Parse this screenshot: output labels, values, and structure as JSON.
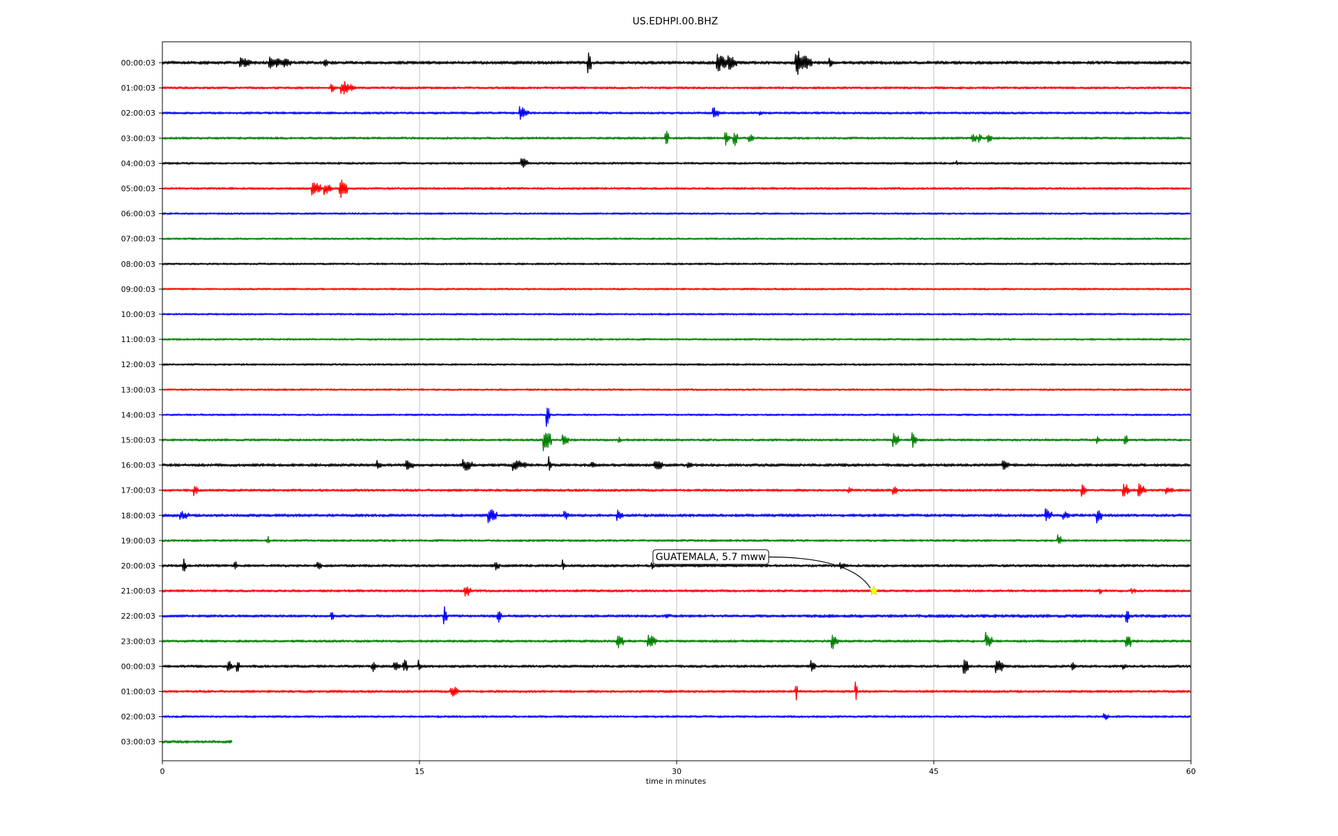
{
  "chart_data": {
    "type": "line",
    "title": "US.EDHPI.00.BHZ",
    "xlabel": "time in minutes",
    "ylabel": "",
    "xlim": [
      0,
      60
    ],
    "x_ticks": [
      "0",
      "15",
      "30",
      "45",
      "60"
    ],
    "grid": "vertical lines at each x tick",
    "trace_colors": [
      "#000000",
      "#ff0000",
      "#0000ff",
      "#008000"
    ],
    "traces": [
      {
        "label": "00:00:03",
        "start": 0,
        "end": 60,
        "noise": 2.2,
        "events": [
          [
            4.5,
            0.7,
            8
          ],
          [
            6.2,
            0.8,
            10
          ],
          [
            7,
            0.6,
            7
          ],
          [
            9.4,
            0.3,
            9
          ],
          [
            24.8,
            0.2,
            22
          ],
          [
            32.3,
            0.7,
            14
          ],
          [
            33,
            0.5,
            12
          ],
          [
            36.9,
            0.6,
            24
          ],
          [
            37.5,
            0.4,
            12
          ],
          [
            38.9,
            0.3,
            8
          ]
        ]
      },
      {
        "label": "01:00:03",
        "start": 0,
        "end": 60,
        "noise": 1.6,
        "events": [
          [
            9.8,
            0.4,
            7
          ],
          [
            10.4,
            0.6,
            12
          ],
          [
            11,
            0.3,
            5
          ]
        ]
      },
      {
        "label": "02:00:03",
        "start": 0,
        "end": 60,
        "noise": 1.6,
        "events": [
          [
            20.8,
            0.6,
            10
          ],
          [
            32.1,
            0.4,
            9
          ],
          [
            34.8,
            0.2,
            4
          ],
          [
            38.1,
            0.2,
            4
          ]
        ]
      },
      {
        "label": "03:00:03",
        "start": 0,
        "end": 60,
        "noise": 1.6,
        "events": [
          [
            29.3,
            0.25,
            14
          ],
          [
            32.8,
            0.3,
            12
          ],
          [
            33.3,
            0.25,
            14
          ],
          [
            34.2,
            0.3,
            7
          ],
          [
            47.2,
            0.3,
            9
          ],
          [
            47.6,
            0.2,
            12
          ],
          [
            48.1,
            0.3,
            8
          ]
        ]
      },
      {
        "label": "04:00:03",
        "start": 0,
        "end": 60,
        "noise": 1.5,
        "events": [
          [
            20.9,
            0.4,
            10
          ],
          [
            46.3,
            0.2,
            4
          ]
        ]
      },
      {
        "label": "05:00:03",
        "start": 0,
        "end": 60,
        "noise": 1.5,
        "events": [
          [
            8.7,
            0.6,
            12
          ],
          [
            9.4,
            0.5,
            10
          ],
          [
            10.3,
            0.5,
            16
          ]
        ]
      },
      {
        "label": "06:00:03",
        "start": 0,
        "end": 60,
        "noise": 1.3,
        "events": []
      },
      {
        "label": "07:00:03",
        "start": 0,
        "end": 60,
        "noise": 1.3,
        "events": []
      },
      {
        "label": "08:00:03",
        "start": 0,
        "end": 60,
        "noise": 1.3,
        "events": []
      },
      {
        "label": "09:00:03",
        "start": 0,
        "end": 60,
        "noise": 1.3,
        "events": []
      },
      {
        "label": "10:00:03",
        "start": 0,
        "end": 60,
        "noise": 1.3,
        "events": []
      },
      {
        "label": "11:00:03",
        "start": 0,
        "end": 60,
        "noise": 1.3,
        "events": []
      },
      {
        "label": "12:00:03",
        "start": 0,
        "end": 60,
        "noise": 1.3,
        "events": []
      },
      {
        "label": "13:00:03",
        "start": 0,
        "end": 60,
        "noise": 1.3,
        "events": []
      },
      {
        "label": "14:00:03",
        "start": 0,
        "end": 60,
        "noise": 1.3,
        "events": [
          [
            22.4,
            0.2,
            20
          ]
        ]
      },
      {
        "label": "15:00:03",
        "start": 0,
        "end": 60,
        "noise": 1.6,
        "events": [
          [
            22.2,
            0.5,
            18
          ],
          [
            23.3,
            0.4,
            9
          ],
          [
            26.6,
            0.2,
            5
          ],
          [
            42.6,
            0.4,
            12
          ],
          [
            43.7,
            0.3,
            14
          ],
          [
            54.5,
            0.2,
            7
          ],
          [
            56.1,
            0.2,
            11
          ]
        ]
      },
      {
        "label": "16:00:03",
        "start": 0,
        "end": 60,
        "noise": 2.0,
        "events": [
          [
            12.5,
            0.3,
            9
          ],
          [
            14.2,
            0.5,
            8
          ],
          [
            17.5,
            0.6,
            10
          ],
          [
            20.4,
            0.8,
            9
          ],
          [
            22.5,
            0.2,
            14
          ],
          [
            25,
            0.3,
            6
          ],
          [
            28.7,
            0.5,
            9
          ],
          [
            30.6,
            0.3,
            6
          ],
          [
            49,
            0.4,
            8
          ]
        ]
      },
      {
        "label": "17:00:03",
        "start": 0,
        "end": 60,
        "noise": 1.7,
        "events": [
          [
            1.8,
            0.3,
            9
          ],
          [
            40,
            0.3,
            5
          ],
          [
            42.6,
            0.3,
            8
          ],
          [
            53.6,
            0.3,
            11
          ],
          [
            56,
            0.4,
            13
          ],
          [
            56.9,
            0.5,
            10
          ],
          [
            58.5,
            0.5,
            6
          ]
        ]
      },
      {
        "label": "18:00:03",
        "start": 0,
        "end": 60,
        "noise": 2.0,
        "events": [
          [
            1,
            0.6,
            7
          ],
          [
            19,
            0.5,
            12
          ],
          [
            23.4,
            0.3,
            8
          ],
          [
            26.5,
            0.4,
            9
          ],
          [
            51.5,
            0.4,
            11
          ],
          [
            52.5,
            0.4,
            8
          ],
          [
            54.5,
            0.3,
            14
          ]
        ]
      },
      {
        "label": "19:00:03",
        "start": 0,
        "end": 60,
        "noise": 1.5,
        "events": [
          [
            6.1,
            0.15,
            8
          ],
          [
            52.2,
            0.3,
            10
          ]
        ]
      },
      {
        "label": "20:00:03",
        "start": 0,
        "end": 60,
        "noise": 1.8,
        "events": [
          [
            1.2,
            0.2,
            12
          ],
          [
            4.2,
            0.2,
            8
          ],
          [
            9,
            0.3,
            7
          ],
          [
            19.4,
            0.3,
            7
          ],
          [
            23.3,
            0.2,
            10
          ],
          [
            28.5,
            0.2,
            6
          ],
          [
            39.5,
            0.3,
            7
          ]
        ]
      },
      {
        "label": "21:00:03",
        "start": 0,
        "end": 60,
        "noise": 1.7,
        "events": [
          [
            17.6,
            0.4,
            12
          ],
          [
            21.2,
            23.8,
            1.5
          ],
          [
            54.6,
            0.2,
            7
          ],
          [
            56.5,
            0.3,
            5
          ]
        ]
      },
      {
        "label": "22:00:03",
        "start": 0,
        "end": 60,
        "noise": 1.8,
        "events": [
          [
            9.8,
            0.2,
            13
          ],
          [
            16.4,
            0.2,
            16
          ],
          [
            19.5,
            0.3,
            12
          ],
          [
            29.3,
            0.5,
            4
          ],
          [
            37.8,
            20.8,
            2.2
          ],
          [
            56.2,
            0.2,
            14
          ]
        ]
      },
      {
        "label": "23:00:03",
        "start": 0,
        "end": 60,
        "noise": 1.7,
        "events": [
          [
            5,
            55,
            1.5
          ],
          [
            26.5,
            0.4,
            14
          ],
          [
            28.3,
            0.5,
            12
          ],
          [
            39,
            0.4,
            14
          ],
          [
            48,
            0.4,
            14
          ],
          [
            56.2,
            0.3,
            18
          ]
        ]
      },
      {
        "label": "00:00:03",
        "start": 0,
        "end": 60,
        "noise": 1.8,
        "events": [
          [
            3.8,
            0.3,
            12
          ],
          [
            4.3,
            0.2,
            12
          ],
          [
            12.2,
            0.3,
            10
          ],
          [
            13.5,
            0.4,
            8
          ],
          [
            14,
            0.3,
            14
          ],
          [
            14.9,
            0.2,
            10
          ],
          [
            37.8,
            0.3,
            12
          ],
          [
            46.7,
            0.3,
            15
          ],
          [
            48.6,
            0.5,
            14
          ],
          [
            53,
            0.3,
            7
          ],
          [
            56,
            0.3,
            5
          ]
        ]
      },
      {
        "label": "01:00:03",
        "start": 0,
        "end": 60,
        "noise": 1.7,
        "events": [
          [
            16.8,
            0.5,
            10
          ],
          [
            36.9,
            0.15,
            22
          ],
          [
            40.4,
            0.15,
            20
          ]
        ]
      },
      {
        "label": "02:00:03",
        "start": 0,
        "end": 60,
        "noise": 1.5,
        "events": [
          [
            54.9,
            0.4,
            6
          ]
        ]
      },
      {
        "label": "03:00:03",
        "start": 0,
        "end": 4.1,
        "noise": 1.9,
        "events": []
      }
    ],
    "annotations": [
      {
        "text": "GUATEMALA, 5.7 mww",
        "row": 21,
        "minute": 41.5,
        "marker": "star",
        "marker_color": "#ffff00"
      }
    ]
  }
}
